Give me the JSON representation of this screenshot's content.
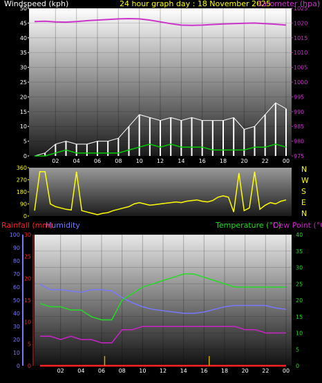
{
  "title": "24 hour graph day : 18 November 2025",
  "colors": {
    "wind": "#ffffff",
    "gust": "#ffffff",
    "avg_wind": "#00cc00",
    "barometer": "#cc33cc",
    "direction": "#ffff00",
    "rain": "#ff2222",
    "humidity": "#7777ff",
    "temperature": "#22dd22",
    "dew_point": "#cc22cc",
    "rain_marks": "#ccaa00"
  },
  "x_ticks": [
    "02",
    "04",
    "06",
    "08",
    "10",
    "12",
    "14",
    "16",
    "18",
    "20",
    "22",
    "00"
  ],
  "chart_data": [
    {
      "type": "line",
      "id": "wind-baro",
      "left_label": "Windspeed (kph)",
      "right_label": "Barometer (hpa)",
      "left_ticks": [
        "0",
        "5",
        "10",
        "15",
        "20",
        "25",
        "30",
        "35",
        "40",
        "45",
        "50"
      ],
      "right_ticks": [
        "975",
        "980",
        "985",
        "990",
        "995",
        "1000",
        "1005",
        "1010",
        "1015",
        "1020",
        "1025"
      ],
      "ylim": [
        0,
        50
      ],
      "y2lim": [
        975,
        1025
      ],
      "x_hours": [
        0,
        1,
        2,
        3,
        4,
        5,
        6,
        7,
        8,
        9,
        10,
        11,
        12,
        13,
        14,
        15,
        16,
        17,
        18,
        19,
        20,
        21,
        22,
        23,
        24
      ],
      "series": [
        {
          "key": "barometer",
          "axis": "right",
          "values": [
            1020.5,
            1020.6,
            1020.4,
            1020.3,
            1020.5,
            1020.8,
            1021.0,
            1021.2,
            1021.4,
            1021.5,
            1021.4,
            1021.0,
            1020.4,
            1019.8,
            1019.3,
            1019.2,
            1019.3,
            1019.5,
            1019.7,
            1019.8,
            1019.9,
            1020.0,
            1019.8,
            1019.6,
            1019.3
          ]
        },
        {
          "key": "gust",
          "axis": "left",
          "values": [
            0,
            1,
            4,
            5,
            4,
            4,
            5,
            5,
            6,
            10,
            14,
            13,
            12,
            13,
            12,
            13,
            12,
            12,
            12,
            13,
            9,
            10,
            14,
            18,
            16
          ]
        },
        {
          "key": "avg_wind",
          "axis": "left",
          "values": [
            0,
            0,
            1,
            2,
            1,
            1,
            1,
            1,
            1,
            2,
            3,
            4,
            3,
            4,
            3,
            3,
            3,
            2,
            2,
            2,
            2,
            3,
            3,
            4,
            3
          ]
        }
      ]
    },
    {
      "type": "line",
      "id": "wind-direction",
      "left_ticks": [
        "0",
        "90",
        "180",
        "270",
        "360"
      ],
      "right_ticks": [
        "N",
        "W",
        "S",
        "E",
        "N"
      ],
      "ylim": [
        0,
        360
      ],
      "x_hours": [
        0,
        0.5,
        1,
        1.5,
        2,
        2.5,
        3,
        3.5,
        4,
        4.5,
        5,
        5.5,
        6,
        6.5,
        7,
        7.5,
        8,
        8.5,
        9,
        9.5,
        10,
        10.5,
        11,
        11.5,
        12,
        12.5,
        13,
        13.5,
        14,
        14.5,
        15,
        15.5,
        16,
        16.5,
        17,
        17.5,
        18,
        18.5,
        19,
        19.5,
        20,
        20.5,
        21,
        21.5,
        22,
        22.5,
        23,
        23.5,
        24
      ],
      "series": [
        {
          "key": "direction",
          "values": [
            40,
            330,
            330,
            90,
            70,
            60,
            50,
            45,
            330,
            40,
            30,
            20,
            10,
            20,
            25,
            40,
            50,
            60,
            70,
            90,
            100,
            90,
            80,
            85,
            90,
            95,
            100,
            105,
            100,
            110,
            115,
            120,
            110,
            105,
            115,
            140,
            150,
            140,
            30,
            320,
            40,
            60,
            330,
            50,
            80,
            100,
            90,
            110,
            120
          ]
        }
      ]
    },
    {
      "type": "line",
      "id": "temp-hum-rain",
      "left_label_rain": "Rainfall (mm)",
      "left_label_humidity": "Humidity",
      "right_label_temp": "Temperature (°C)",
      "right_label_dew": "Dew Point (°C)",
      "humidity_ticks": [
        "0",
        "10",
        "20",
        "30",
        "40",
        "50",
        "60",
        "70",
        "80",
        "90",
        "100"
      ],
      "rain_ticks": [
        "0",
        "5",
        "10",
        "15",
        "20",
        "25",
        "30"
      ],
      "temp_ticks": [
        "0",
        "5",
        "10",
        "15",
        "20",
        "25",
        "30",
        "35",
        "40"
      ],
      "x_hours": [
        0,
        1,
        2,
        3,
        4,
        5,
        6,
        7,
        8,
        9,
        10,
        11,
        12,
        13,
        14,
        15,
        16,
        17,
        18,
        19,
        20,
        21,
        22,
        23,
        24
      ],
      "series": [
        {
          "key": "humidity",
          "axis": "humidity",
          "values": [
            62,
            58,
            58,
            57,
            56,
            58,
            58,
            57,
            52,
            48,
            45,
            43,
            42,
            41,
            40,
            40,
            41,
            43,
            45,
            46,
            46,
            46,
            46,
            44,
            43
          ]
        },
        {
          "key": "temperature",
          "axis": "temp",
          "values": [
            19,
            18,
            18,
            17,
            17,
            15,
            14,
            14,
            20,
            22,
            24,
            25,
            26,
            27,
            28,
            28,
            27,
            26,
            25,
            24,
            24,
            24,
            24,
            24,
            24
          ]
        },
        {
          "key": "dew_point",
          "axis": "temp",
          "values": [
            9,
            9,
            8,
            9,
            8,
            8,
            7,
            7,
            11,
            11,
            12,
            12,
            12,
            12,
            12,
            12,
            12,
            12,
            12,
            12,
            11,
            11,
            10,
            10,
            10
          ]
        },
        {
          "key": "rain",
          "axis": "rain",
          "values": [
            0,
            0,
            0,
            0,
            0,
            0,
            0,
            0,
            0,
            0,
            0,
            0,
            0,
            0,
            0,
            0,
            0,
            0,
            0,
            0,
            0,
            0,
            0,
            0,
            0
          ]
        }
      ],
      "rain_mark_hours": [
        6.3,
        16.5
      ]
    }
  ]
}
